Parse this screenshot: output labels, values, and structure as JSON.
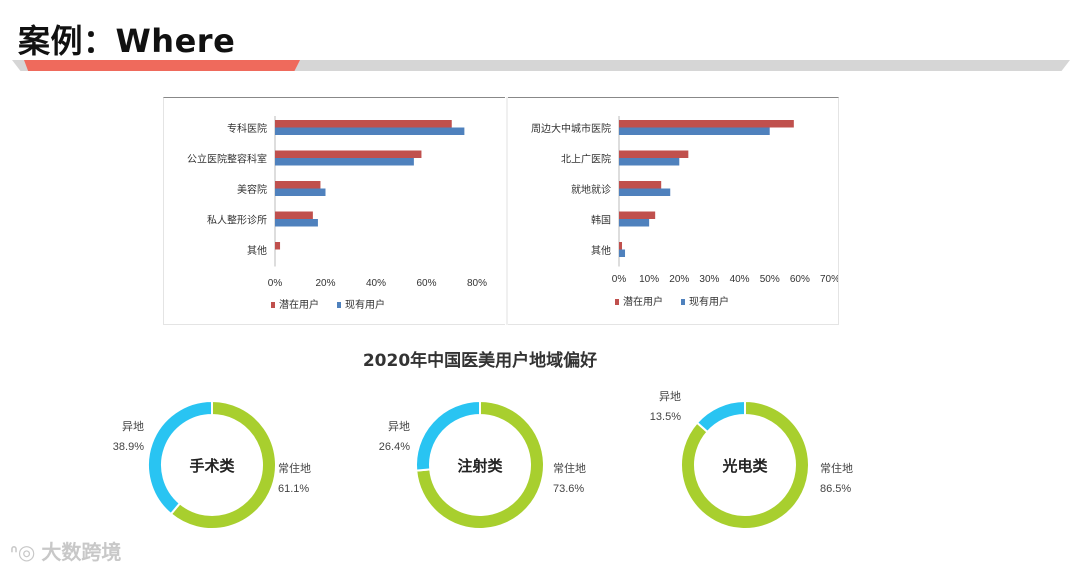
{
  "page": {
    "title": "案例：Where"
  },
  "section": {
    "title": "2020年中国医美用户地域偏好"
  },
  "watermark": {
    "text": "大数跨境"
  },
  "colors": {
    "potential": "#c0504d",
    "existing": "#4f81bd",
    "donut_main": "#a8cf2e",
    "donut_other": "#29c4f2"
  },
  "chart_data": [
    {
      "type": "bar",
      "orientation": "horizontal",
      "categories": [
        "专科医院",
        "公立医院整容科室",
        "美容院",
        "私人整形诊所",
        "其他"
      ],
      "series": [
        {
          "name": "潜在用户",
          "values": [
            70,
            58,
            18,
            15,
            2
          ]
        },
        {
          "name": "现有用户",
          "values": [
            75,
            55,
            20,
            17,
            0
          ]
        }
      ],
      "xlim": [
        0,
        80
      ],
      "ticks": [
        "0%",
        "20%",
        "40%",
        "60%",
        "80%"
      ],
      "tick_values": [
        0,
        20,
        40,
        60,
        80
      ],
      "legend": "bottom-left"
    },
    {
      "type": "bar",
      "orientation": "horizontal",
      "categories": [
        "周边大中城市医院",
        "北上广医院",
        "就地就诊",
        "韩国",
        "其他"
      ],
      "series": [
        {
          "name": "潜在用户",
          "values": [
            58,
            23,
            14,
            12,
            1
          ]
        },
        {
          "name": "现有用户",
          "values": [
            50,
            20,
            17,
            10,
            2
          ]
        }
      ],
      "xlim": [
        0,
        70
      ],
      "ticks": [
        "0%",
        "10%",
        "20%",
        "30%",
        "40%",
        "50%",
        "60%",
        "70%"
      ],
      "tick_values": [
        0,
        10,
        20,
        30,
        40,
        50,
        60,
        70
      ],
      "legend": "bottom-left"
    },
    {
      "type": "pie",
      "variant": "donut",
      "center_label": "手术类",
      "slices": [
        {
          "label": "常住地",
          "pct_text": "61.1%",
          "value": 61.1
        },
        {
          "label": "异地",
          "pct_text": "38.9%",
          "value": 38.9
        }
      ]
    },
    {
      "type": "pie",
      "variant": "donut",
      "center_label": "注射类",
      "slices": [
        {
          "label": "常住地",
          "pct_text": "73.6%",
          "value": 73.6
        },
        {
          "label": "异地",
          "pct_text": "26.4%",
          "value": 26.4
        }
      ]
    },
    {
      "type": "pie",
      "variant": "donut",
      "center_label": "光电类",
      "slices": [
        {
          "label": "常住地",
          "pct_text": "86.5%",
          "value": 86.5
        },
        {
          "label": "异地",
          "pct_text": "13.5%",
          "value": 13.5
        }
      ]
    }
  ]
}
